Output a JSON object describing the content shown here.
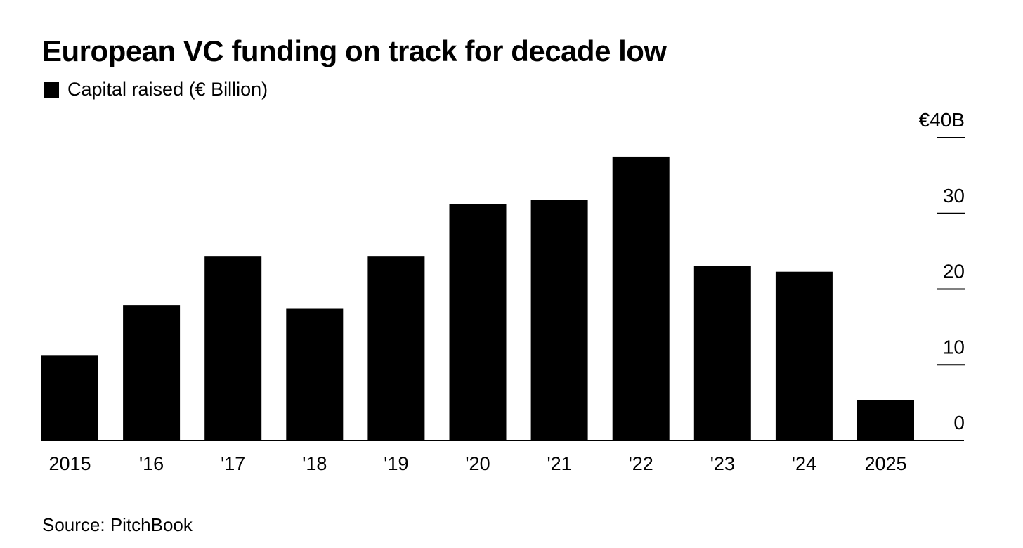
{
  "chart_data": {
    "type": "bar",
    "title": "European VC funding on track for decade low",
    "legend": [
      {
        "label": "Capital raised (€ Billion)",
        "color": "#000000"
      }
    ],
    "categories": [
      "2015",
      "'16",
      "'17",
      "'18",
      "'19",
      "'20",
      "'21",
      "'22",
      "'23",
      "'24",
      "2025"
    ],
    "values": [
      11.2,
      17.9,
      24.3,
      17.4,
      24.3,
      31.2,
      31.8,
      37.5,
      23.1,
      22.3,
      5.3
    ],
    "ylim": [
      0,
      40
    ],
    "yticks": [
      0,
      10,
      20,
      30,
      40
    ],
    "ytick_labels": [
      "0",
      "10",
      "20",
      "30",
      "€40B"
    ],
    "yaxis_position": "right",
    "xlabel": "",
    "ylabel": "",
    "grid": false,
    "bar_color": "#000000"
  },
  "source": "Source: PitchBook"
}
